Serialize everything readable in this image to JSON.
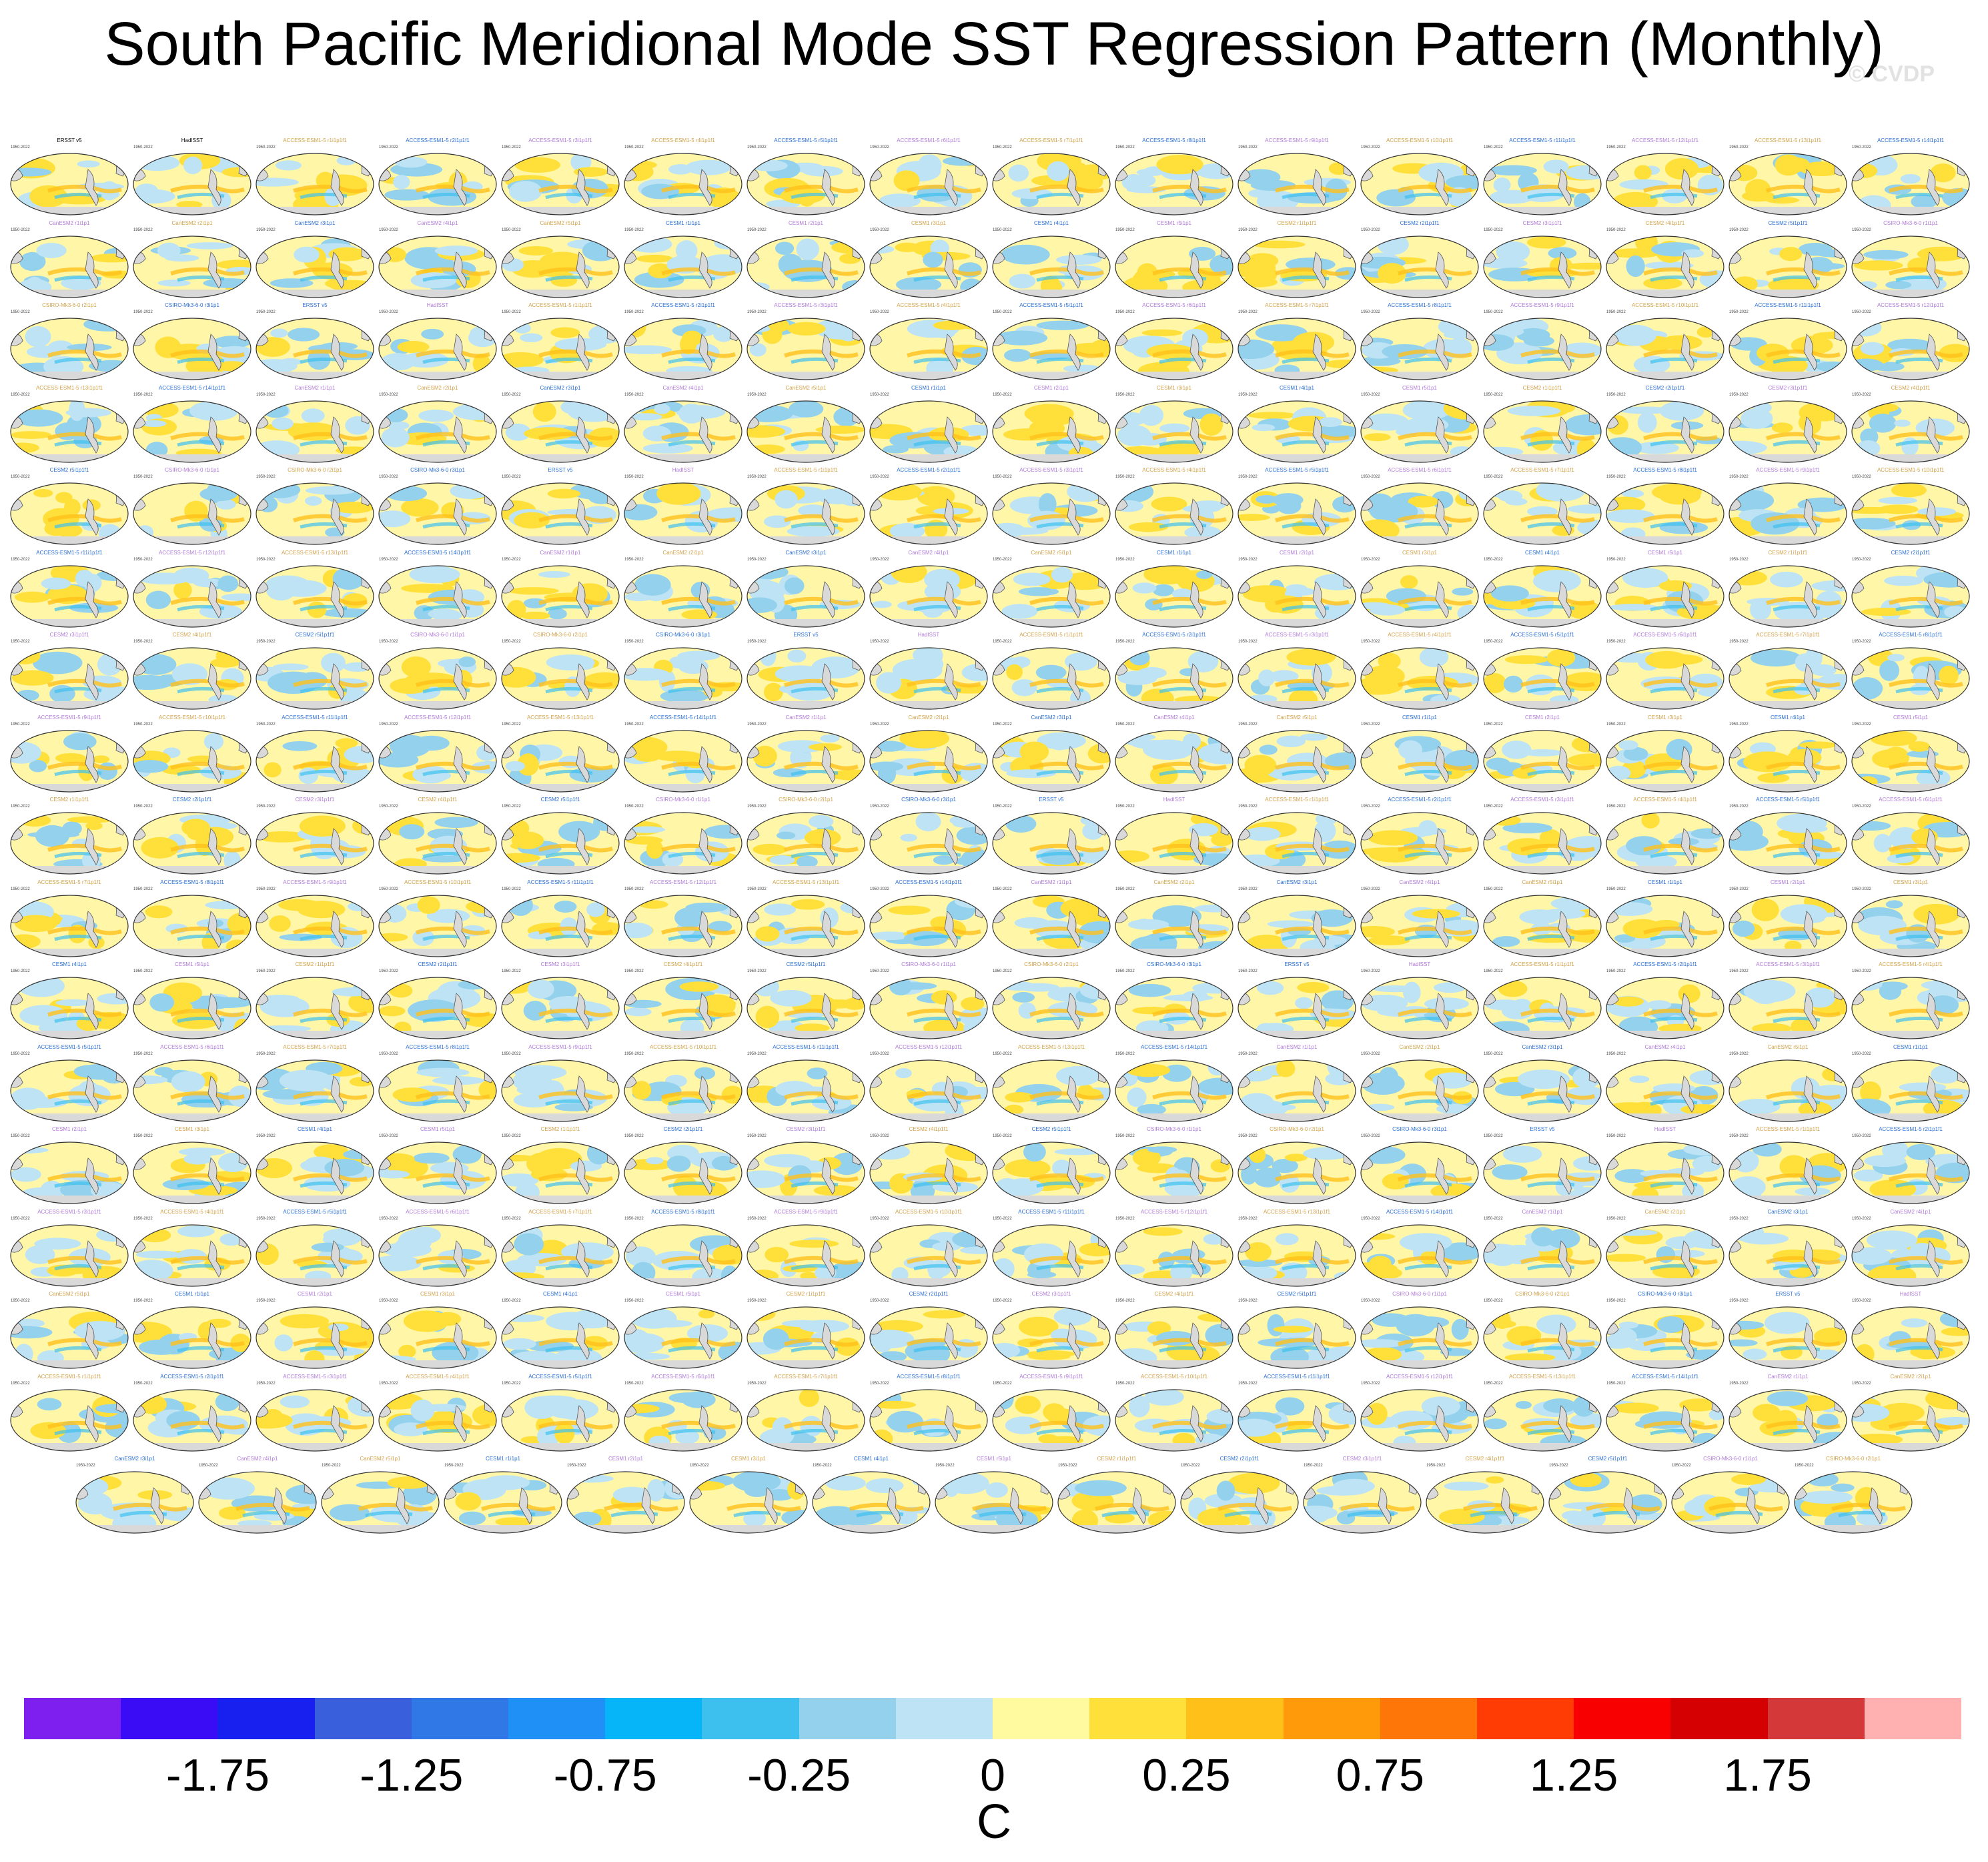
{
  "title": "South Pacific Meridional Mode SST Regression Pattern (Monthly)",
  "watermark": "© CVDP",
  "panels": {
    "period": "1950-2022",
    "labels": [
      "ERSST v5",
      "HadISST",
      "ACCESS-ESM1-5 r1i1p1f1",
      "ACCESS-ESM1-5 r2i1p1f1",
      "ACCESS-ESM1-5 r3i1p1f1",
      "ACCESS-ESM1-5 r4i1p1f1",
      "ACCESS-ESM1-5 r5i1p1f1",
      "ACCESS-ESM1-5 r6i1p1f1",
      "ACCESS-ESM1-5 r7i1p1f1",
      "ACCESS-ESM1-5 r8i1p1f1",
      "ACCESS-ESM1-5 r9i1p1f1",
      "ACCESS-ESM1-5 r10i1p1f1",
      "ACCESS-ESM1-5 r11i1p1f1",
      "ACCESS-ESM1-5 r12i1p1f1",
      "ACCESS-ESM1-5 r13i1p1f1",
      "ACCESS-ESM1-5 r14i1p1f1",
      "CanESM2 r1i1p1",
      "CanESM2 r2i1p1",
      "CanESM2 r3i1p1",
      "CanESM2 r4i1p1",
      "CanESM2 r5i1p1",
      "CESM1 r1i1p1",
      "CESM1 r2i1p1",
      "CESM1 r3i1p1",
      "CESM1 r4i1p1",
      "CESM1 r5i1p1",
      "CESM2 r1i1p1f1",
      "CESM2 r2i1p1f1",
      "CESM2 r3i1p1f1",
      "CESM2 r4i1p1f1",
      "CESM2 r5i1p1f1",
      "CSIRO-Mk3-6-0 r1i1p1",
      "CSIRO-Mk3-6-0 r2i1p1",
      "CSIRO-Mk3-6-0 r3i1p1"
    ]
  },
  "colorbar": {
    "colors": [
      "#7f1fef",
      "#3a0bf5",
      "#1820f0",
      "#3a5fdc",
      "#2f78e6",
      "#1f90f5",
      "#06b4f8",
      "#3ec0ef",
      "#93d1ed",
      "#bde3f5",
      "#fffaa0",
      "#ffe03a",
      "#ffc01a",
      "#ff9a0a",
      "#ff7608",
      "#ff3c04",
      "#f80002",
      "#d40002",
      "#d43838",
      "#ffb0b0"
    ],
    "tick_labels": [
      "-1.75",
      "-1.25",
      "-0.75",
      "-0.25",
      "0",
      "0.25",
      "0.75",
      "1.25",
      "1.75"
    ],
    "unit": "C"
  }
}
